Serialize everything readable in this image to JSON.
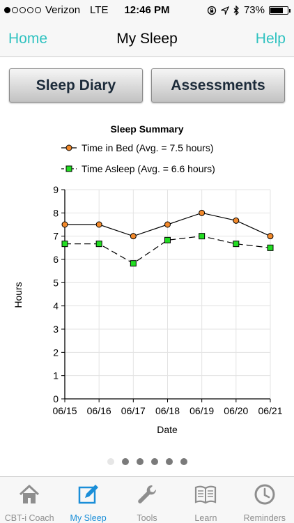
{
  "status_bar": {
    "carrier": "Verizon",
    "network": "LTE",
    "time": "12:46 PM",
    "battery": "73%",
    "battery_level": 0.73
  },
  "nav": {
    "left": "Home",
    "title": "My Sleep",
    "right": "Help"
  },
  "buttons": {
    "diary": "Sleep Diary",
    "assessments": "Assessments"
  },
  "chart_data": {
    "type": "line",
    "title": "Sleep Summary",
    "xlabel": "Date",
    "ylabel": "Hours",
    "ylim": [
      0,
      9
    ],
    "yticks": [
      "0",
      "1",
      "2",
      "3",
      "4",
      "5",
      "6",
      "7",
      "8",
      "9"
    ],
    "categories": [
      "06/15",
      "06/16",
      "06/17",
      "06/18",
      "06/19",
      "06/20",
      "06/21"
    ],
    "grid": true,
    "legend_position": "top",
    "series": [
      {
        "name": "Time in Bed (Avg. = 7.5 hours)",
        "values": [
          7.5,
          7.5,
          7.0,
          7.5,
          8.0,
          7.67,
          7.0
        ],
        "color": "#f2892b",
        "marker": "circle",
        "line": "solid"
      },
      {
        "name": "Time Asleep (Avg. = 6.6 hours)",
        "values": [
          6.67,
          6.67,
          5.83,
          6.83,
          7.0,
          6.67,
          6.5
        ],
        "color": "#22dd22",
        "marker": "square",
        "line": "dashed"
      }
    ]
  },
  "page_indicator": {
    "count": 6,
    "active": 0
  },
  "tabs": [
    {
      "label": "CBT-i Coach",
      "icon": "home-icon",
      "active": false
    },
    {
      "label": "My Sleep",
      "icon": "edit-icon",
      "active": true
    },
    {
      "label": "Tools",
      "icon": "wrench-icon",
      "active": false
    },
    {
      "label": "Learn",
      "icon": "book-icon",
      "active": false
    },
    {
      "label": "Reminders",
      "icon": "clock-icon",
      "active": false
    }
  ],
  "colors": {
    "accent": "#2fc2c0",
    "tab_active": "#1a8ed8",
    "tab_inactive": "#8e8e8e"
  }
}
